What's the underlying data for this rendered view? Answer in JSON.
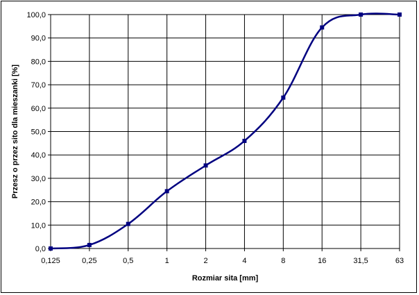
{
  "chart_data": {
    "type": "line",
    "title": "",
    "xlabel": "Rozmiar sita [mm]",
    "ylabel": "Przesz   o przez sito dla mieszanki [%]",
    "x_scale": "categorical (log2-spaced sieve sizes)",
    "categories": [
      "0,125",
      "0,25",
      "0,5",
      "1",
      "2",
      "4",
      "8",
      "16",
      "31,5",
      "63"
    ],
    "y_tick_labels": [
      "0,0",
      "10,0",
      "20,0",
      "30,0",
      "40,0",
      "50,0",
      "60,0",
      "70,0",
      "80,0",
      "90,0",
      "100,0"
    ],
    "ylim": [
      0,
      100
    ],
    "grid": true,
    "legend": "none",
    "series": [
      {
        "values": [
          0.0,
          1.5,
          10.5,
          24.5,
          35.5,
          46.0,
          64.5,
          94.5,
          100.0,
          100.0
        ],
        "color": "#000080"
      }
    ]
  }
}
